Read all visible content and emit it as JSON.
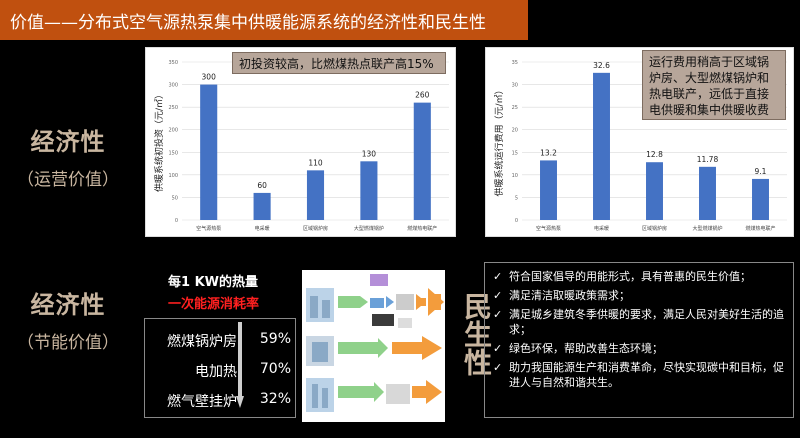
{
  "header": {
    "title": "价值——分布式空气源热泵集中供暖能源系统的经济性和民生性"
  },
  "economic_operation": {
    "main": "经济性",
    "sub": "（运营价值）"
  },
  "economic_energy": {
    "main": "经济性",
    "sub": "（节能价值）"
  },
  "callouts": {
    "investment": "初投资较高，比燃煤热点联产高15%",
    "operation": "运行费用稍高于区域锅炉房、大型燃煤锅炉和热电联产，远低于直接电供暖和集中供暖收费"
  },
  "chart_data": [
    {
      "type": "bar",
      "ylabel": "供暖系统初投资（元/㎡）",
      "categories": [
        "空气源热泵",
        "电采暖",
        "区域锅炉房",
        "大型燃煤锅炉",
        "燃煤热电联产"
      ],
      "values": [
        300,
        60,
        110,
        130,
        260
      ],
      "ylim": [
        0,
        350
      ],
      "yticks": [
        0,
        50,
        100,
        150,
        200,
        250,
        300,
        350
      ],
      "color": "#4472c4",
      "grid": true
    },
    {
      "type": "bar",
      "ylabel": "供暖系统运行费用（元/㎡）",
      "categories": [
        "空气源热泵",
        "电采暖",
        "区域锅炉房",
        "大型燃煤锅炉",
        "燃煤热电联产"
      ],
      "values": [
        13.2,
        32.6,
        12.8,
        11.78,
        9.1
      ],
      "ylim": [
        0,
        35
      ],
      "yticks": [
        0,
        5,
        10,
        15,
        20,
        25,
        30,
        35
      ],
      "color": "#4472c4",
      "grid": true
    }
  ],
  "energy": {
    "heading1": "每1 KW的热量",
    "heading2": "一次能源消耗率",
    "rows": [
      {
        "label": "燃煤锅炉房",
        "value": "59%"
      },
      {
        "label": "电加热",
        "value": "70%"
      },
      {
        "label": "燃气壁挂炉",
        "value": "32%"
      }
    ]
  },
  "livelihood": {
    "title": "民生性",
    "bullets": [
      "符合国家倡导的用能形式，具有普惠的民生价值；",
      "满足清洁取暖政策需求；",
      "满足城乡建筑冬季供暖的要求，满足人民对美好生活的追求；",
      "绿色环保，帮助改善生态环境；",
      "助力我国能源生产和消费革命，尽快实现碳中和目标，促进人与自然和谐共生。"
    ]
  }
}
